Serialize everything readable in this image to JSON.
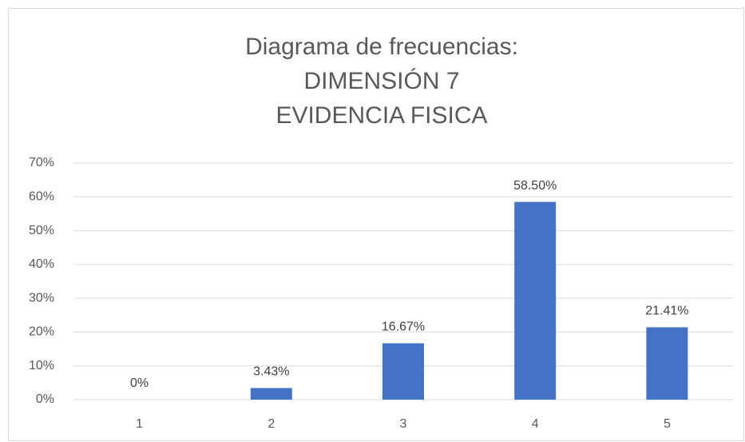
{
  "chart_data": {
    "type": "bar",
    "title": [
      "Diagrama de frecuencias:",
      "DIMENSIÓN 7",
      "EVIDENCIA FISICA"
    ],
    "categories": [
      "1",
      "2",
      "3",
      "4",
      "5"
    ],
    "values": [
      0,
      3.43,
      16.67,
      58.5,
      21.41
    ],
    "value_labels": [
      "0%",
      "3.43%",
      "16.67%",
      "58.50%",
      "21.41%"
    ],
    "color": "#4472c4",
    "ylim": [
      0,
      70
    ],
    "yticks": [
      {
        "value": 0,
        "label": "0%"
      },
      {
        "value": 10,
        "label": "10%"
      },
      {
        "value": 20,
        "label": "20%"
      },
      {
        "value": 30,
        "label": "30%"
      },
      {
        "value": 40,
        "label": "40%"
      },
      {
        "value": 50,
        "label": "50%"
      },
      {
        "value": 60,
        "label": "60%"
      },
      {
        "value": 70,
        "label": "70%"
      }
    ],
    "grid": true
  }
}
